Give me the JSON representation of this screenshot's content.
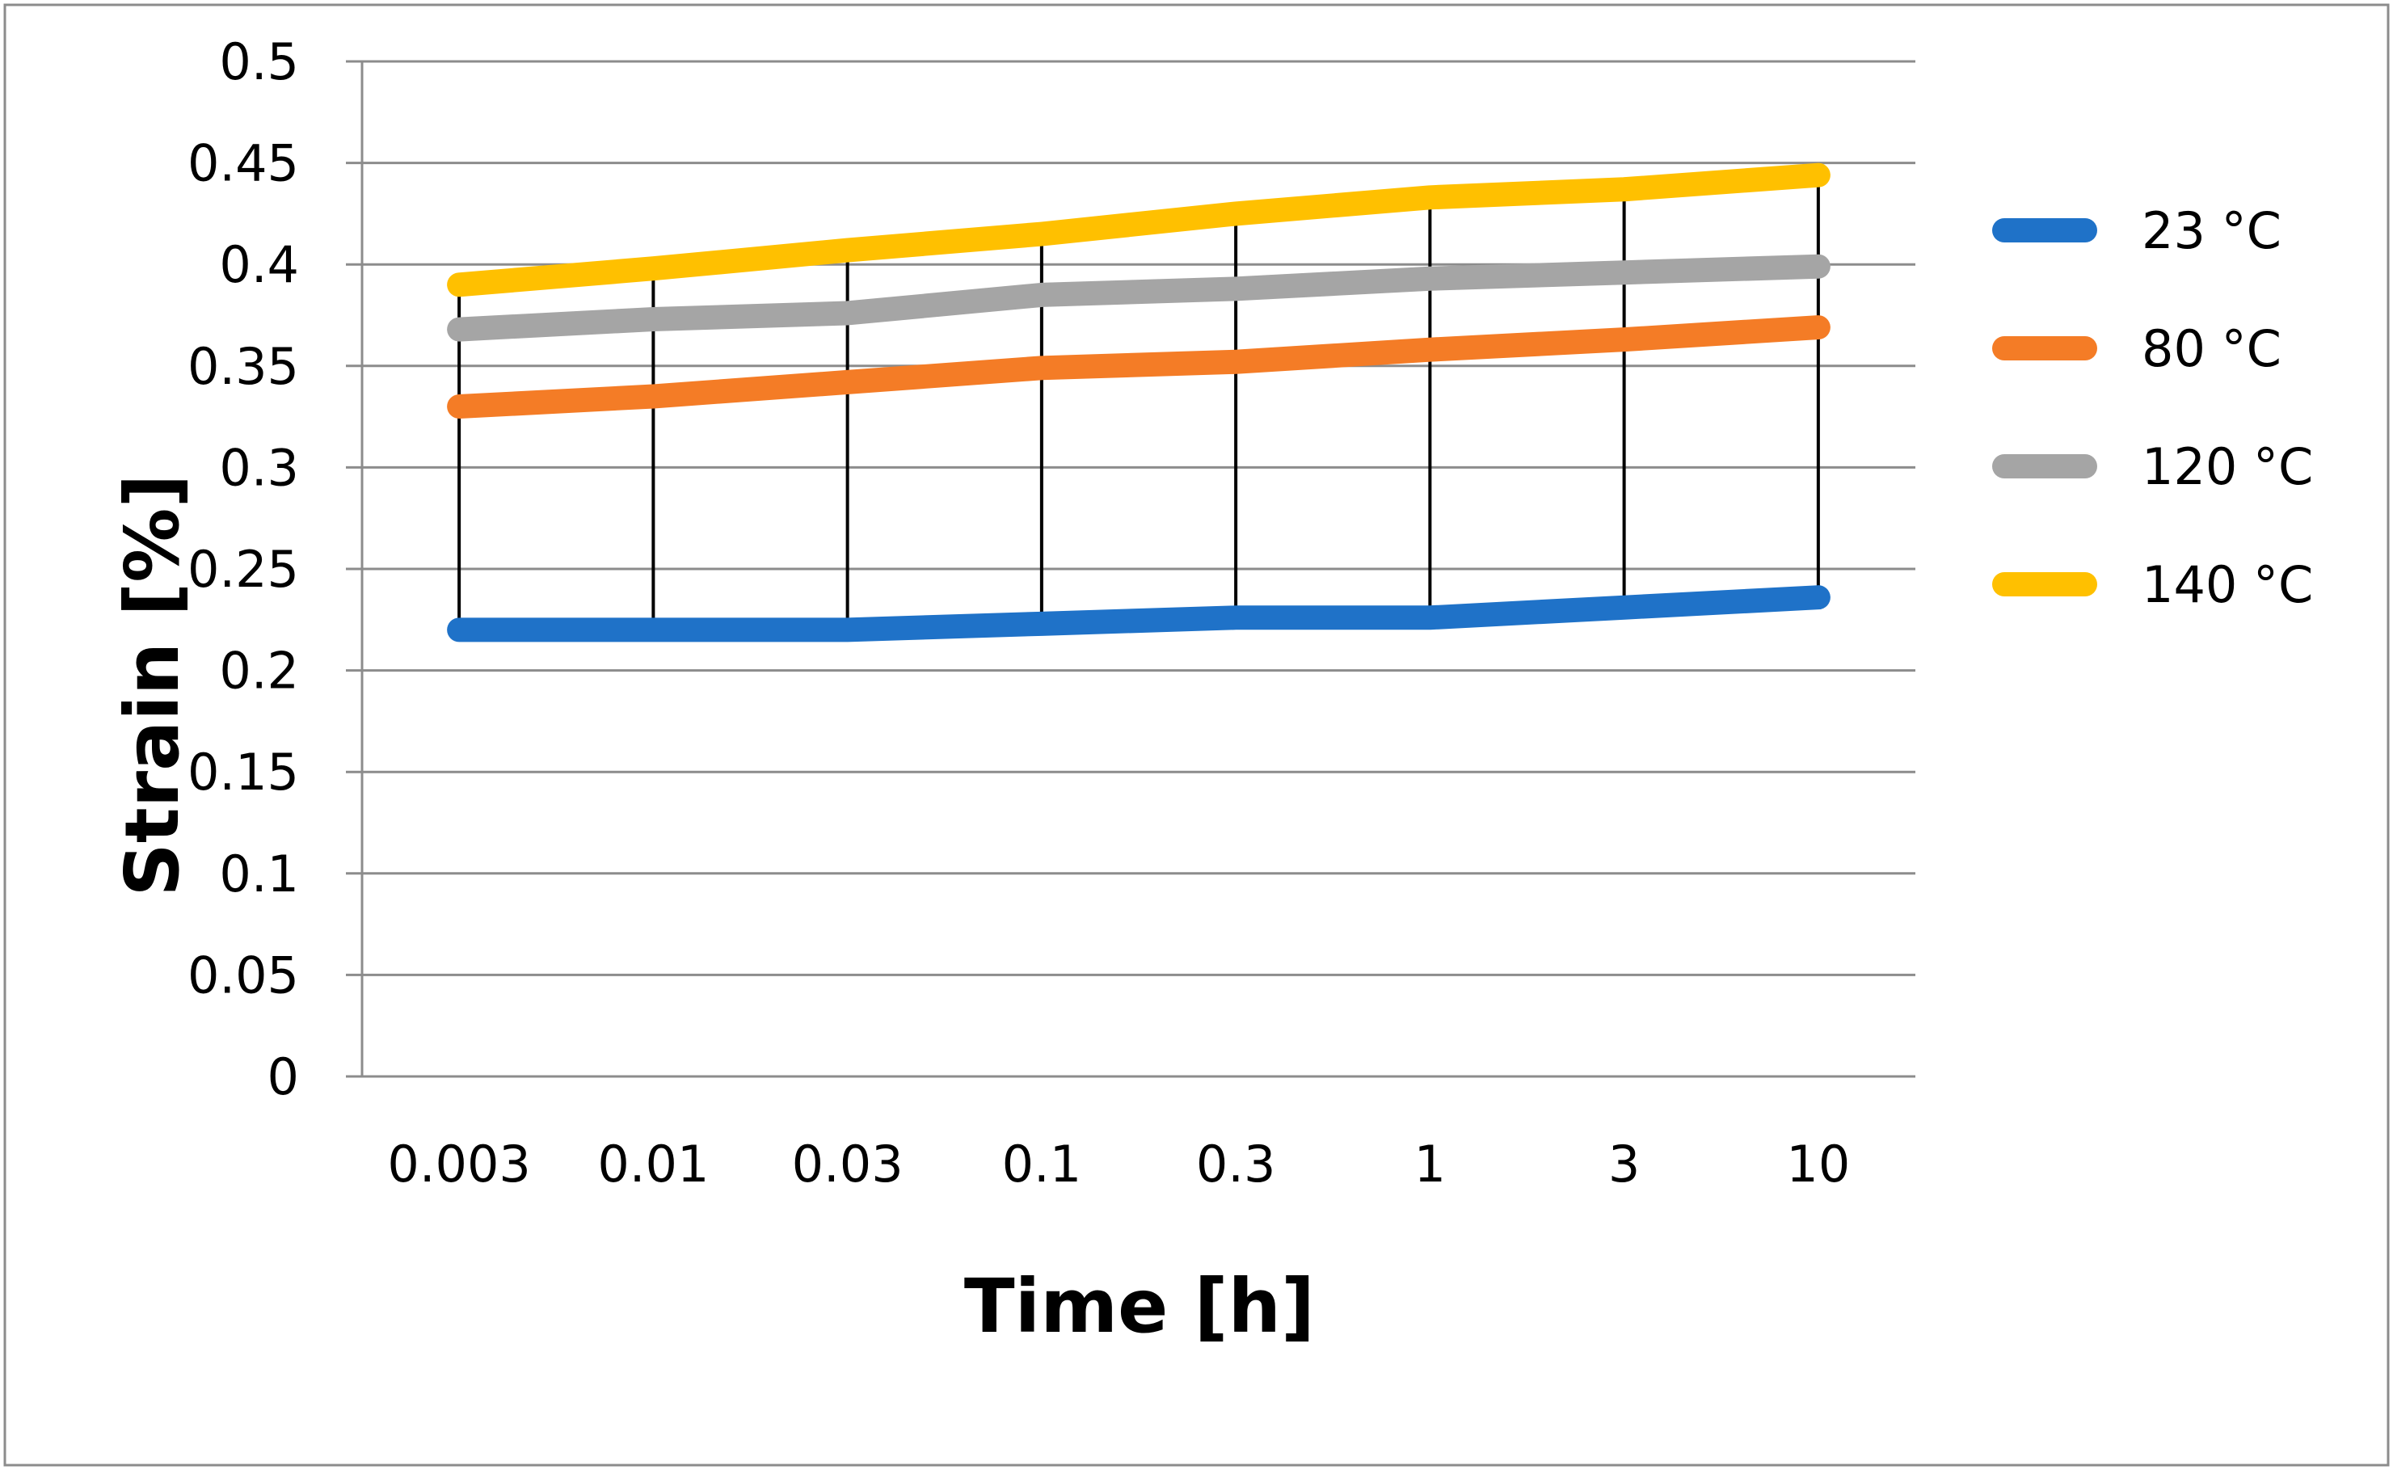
{
  "chart_data": {
    "type": "line",
    "title": "",
    "xlabel": "Time [h]",
    "ylabel": "Strain [%]",
    "categories": [
      "0.003",
      "0.01",
      "0.03",
      "0.1",
      "0.3",
      "1",
      "3",
      "10"
    ],
    "ylim": [
      0,
      0.5
    ],
    "yticks": [
      "0",
      "0.05",
      "0.1",
      "0.15",
      "0.2",
      "0.25",
      "0.3",
      "0.35",
      "0.4",
      "0.45",
      "0.5"
    ],
    "grid": true,
    "legend_position": "right",
    "series": [
      {
        "name": "23 °C",
        "color": "#1f72c8",
        "values": [
          0.22,
          0.22,
          0.22,
          0.223,
          0.226,
          0.226,
          0.231,
          0.236
        ]
      },
      {
        "name": "80 °C",
        "color": "#f47c26",
        "values": [
          0.33,
          0.335,
          0.342,
          0.349,
          0.352,
          0.358,
          0.363,
          0.369
        ]
      },
      {
        "name": "120 °C",
        "color": "#a5a5a5",
        "values": [
          0.368,
          0.373,
          0.376,
          0.385,
          0.388,
          0.393,
          0.396,
          0.399
        ]
      },
      {
        "name": "140 °C",
        "color": "#ffc000",
        "values": [
          0.39,
          0.398,
          0.407,
          0.415,
          0.425,
          0.433,
          0.437,
          0.444
        ]
      }
    ],
    "range_bars": {
      "color": "#000000",
      "low": [
        0.22,
        0.22,
        0.22,
        0.223,
        0.226,
        0.226,
        0.231,
        0.236
      ],
      "high": [
        0.39,
        0.398,
        0.407,
        0.415,
        0.425,
        0.433,
        0.437,
        0.444
      ]
    }
  }
}
